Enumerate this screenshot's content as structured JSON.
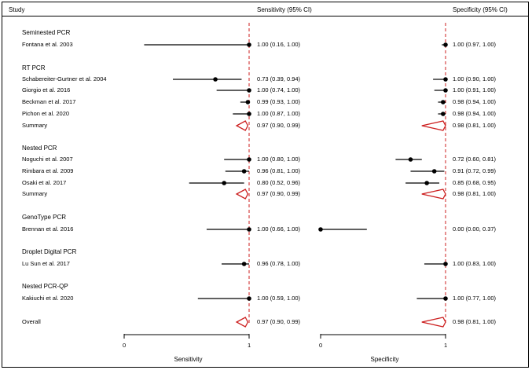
{
  "header": {
    "study": "Study",
    "sens": "Sensitivity (95% CI)",
    "spec": "Specificity (95% CI)"
  },
  "chart_data": {
    "type": "forest",
    "panels": [
      {
        "name": "Sensitivity",
        "xlabel": "Sensitivity",
        "xlim": [
          0,
          1
        ],
        "ticks": [
          "0",
          "1"
        ],
        "reference_line": 1
      },
      {
        "name": "Specificity",
        "xlabel": "Specificity",
        "xlim": [
          0,
          1
        ],
        "ticks": [
          "0",
          "1"
        ],
        "reference_line": 1
      }
    ],
    "rows": [
      {
        "kind": "group",
        "label": "Seminested PCR"
      },
      {
        "kind": "study",
        "label": "Fontana et al. 2003",
        "sens": {
          "est": 1.0,
          "lo": 0.16,
          "hi": 1.0,
          "text": "1.00 (0.16, 1.00)"
        },
        "spec": {
          "est": 1.0,
          "lo": 0.97,
          "hi": 1.0,
          "text": "1.00 (0.97, 1.00)"
        }
      },
      {
        "kind": "group",
        "label": "RT PCR"
      },
      {
        "kind": "study",
        "label": "Schabereiter-Gurtner et al. 2004",
        "sens": {
          "est": 0.73,
          "lo": 0.39,
          "hi": 0.94,
          "text": "0.73 (0.39, 0.94)"
        },
        "spec": {
          "est": 1.0,
          "lo": 0.9,
          "hi": 1.0,
          "text": "1.00 (0.90, 1.00)"
        }
      },
      {
        "kind": "study",
        "label": "Giorgio et al. 2016",
        "sens": {
          "est": 1.0,
          "lo": 0.74,
          "hi": 1.0,
          "text": "1.00 (0.74, 1.00)"
        },
        "spec": {
          "est": 1.0,
          "lo": 0.91,
          "hi": 1.0,
          "text": "1.00 (0.91, 1.00)"
        }
      },
      {
        "kind": "study",
        "label": "Beckman et al. 2017",
        "sens": {
          "est": 0.99,
          "lo": 0.93,
          "hi": 1.0,
          "text": "0.99 (0.93, 1.00)"
        },
        "spec": {
          "est": 0.98,
          "lo": 0.94,
          "hi": 1.0,
          "text": "0.98 (0.94, 1.00)"
        }
      },
      {
        "kind": "study",
        "label": "Pichon et al. 2020",
        "sens": {
          "est": 1.0,
          "lo": 0.87,
          "hi": 1.0,
          "text": "1.00 (0.87, 1.00)"
        },
        "spec": {
          "est": 0.98,
          "lo": 0.94,
          "hi": 1.0,
          "text": "0.98 (0.94, 1.00)"
        }
      },
      {
        "kind": "summary",
        "label": "Summary",
        "sens": {
          "est": 0.97,
          "lo": 0.9,
          "hi": 0.99,
          "text": "0.97 (0.90, 0.99)"
        },
        "spec": {
          "est": 0.98,
          "lo": 0.81,
          "hi": 1.0,
          "text": "0.98 (0.81, 1.00)"
        }
      },
      {
        "kind": "group",
        "label": "Nested PCR"
      },
      {
        "kind": "study",
        "label": "Noguchi et al. 2007",
        "sens": {
          "est": 1.0,
          "lo": 0.8,
          "hi": 1.0,
          "text": "1.00 (0.80, 1.00)"
        },
        "spec": {
          "est": 0.72,
          "lo": 0.6,
          "hi": 0.81,
          "text": "0.72 (0.60, 0.81)"
        }
      },
      {
        "kind": "study",
        "label": "Rimbara et al. 2009",
        "sens": {
          "est": 0.96,
          "lo": 0.81,
          "hi": 1.0,
          "text": "0.96 (0.81, 1.00)"
        },
        "spec": {
          "est": 0.91,
          "lo": 0.72,
          "hi": 0.99,
          "text": "0.91 (0.72, 0.99)"
        }
      },
      {
        "kind": "study",
        "label": "Osaki et al. 2017",
        "sens": {
          "est": 0.8,
          "lo": 0.52,
          "hi": 0.96,
          "text": "0.80 (0.52, 0.96)"
        },
        "spec": {
          "est": 0.85,
          "lo": 0.68,
          "hi": 0.95,
          "text": "0.85 (0.68, 0.95)"
        }
      },
      {
        "kind": "summary",
        "label": "Summary",
        "sens": {
          "est": 0.97,
          "lo": 0.9,
          "hi": 0.99,
          "text": "0.97 (0.90, 0.99)"
        },
        "spec": {
          "est": 0.98,
          "lo": 0.81,
          "hi": 1.0,
          "text": "0.98 (0.81, 1.00)"
        }
      },
      {
        "kind": "group",
        "label": "GenoType PCR"
      },
      {
        "kind": "study",
        "label": "Brennan et al. 2016",
        "sens": {
          "est": 1.0,
          "lo": 0.66,
          "hi": 1.0,
          "text": "1.00 (0.66, 1.00)"
        },
        "spec": {
          "est": 0.0,
          "lo": 0.0,
          "hi": 0.37,
          "text": "0.00 (0.00, 0.37)"
        }
      },
      {
        "kind": "group",
        "label": "Droplet Digital PCR"
      },
      {
        "kind": "study",
        "label": "Lu Sun et al. 2017",
        "sens": {
          "est": 0.96,
          "lo": 0.78,
          "hi": 1.0,
          "text": "0.96 (0.78, 1.00)"
        },
        "spec": {
          "est": 1.0,
          "lo": 0.83,
          "hi": 1.0,
          "text": "1.00 (0.83, 1.00)"
        }
      },
      {
        "kind": "group",
        "label": "Nested PCR-QP"
      },
      {
        "kind": "study",
        "label": "Kakiuchi et al. 2020",
        "sens": {
          "est": 1.0,
          "lo": 0.59,
          "hi": 1.0,
          "text": "1.00 (0.59, 1.00)"
        },
        "spec": {
          "est": 1.0,
          "lo": 0.77,
          "hi": 1.0,
          "text": "1.00 (0.77, 1.00)"
        }
      },
      {
        "kind": "summary",
        "label": "Overall",
        "sens": {
          "est": 0.97,
          "lo": 0.9,
          "hi": 0.99,
          "text": "0.97 (0.90, 0.99)"
        },
        "spec": {
          "est": 0.98,
          "lo": 0.81,
          "hi": 1.0,
          "text": "0.98 (0.81, 1.00)"
        }
      }
    ],
    "colors": {
      "ci": "#000000",
      "summary": "#cc1f1f",
      "reference": "#cc1f1f",
      "frame": "#000000"
    }
  }
}
